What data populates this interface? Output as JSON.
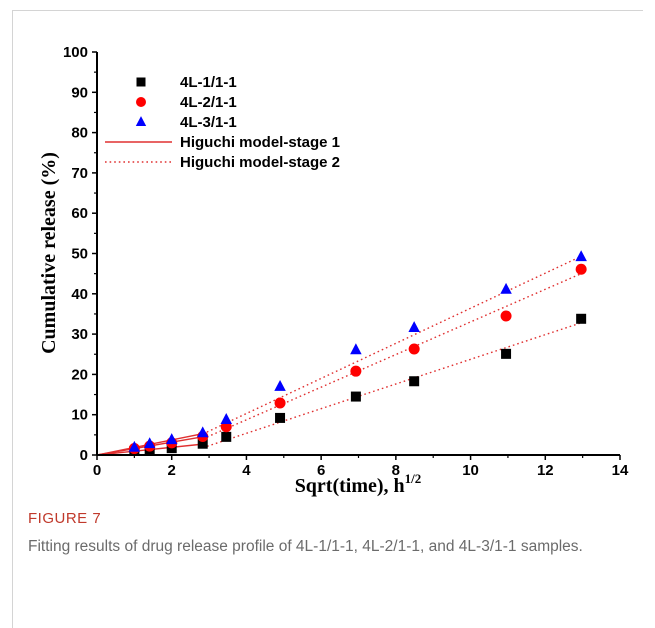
{
  "figure": {
    "label": "FIGURE 7",
    "caption": "Fitting results of drug release profile of 4L-1/1-1, 4L-2/1-1, and 4L-3/1-1 samples."
  },
  "chart_data": {
    "type": "scatter",
    "xlabel": "Sqrt(time), h",
    "xlabel_sup": "1/2",
    "ylabel": "Cumulative release (%)",
    "xlim": [
      0,
      14
    ],
    "ylim": [
      0,
      100
    ],
    "x_ticks": [
      "0",
      "2",
      "4",
      "6",
      "8",
      "10",
      "12",
      "14"
    ],
    "y_ticks": [
      "0",
      "10",
      "20",
      "30",
      "40",
      "50",
      "60",
      "70",
      "80",
      "90",
      "100"
    ],
    "legend_position": "top-left",
    "grid": false,
    "series": [
      {
        "name": "4L-1/1-1",
        "marker": "square",
        "color": "#000000",
        "x": [
          1.0,
          1.41,
          2.0,
          2.83,
          3.46,
          4.9,
          6.93,
          8.49,
          10.95,
          12.96
        ],
        "y": [
          1.0,
          1.2,
          1.7,
          2.8,
          4.5,
          9.2,
          14.5,
          18.3,
          25.1,
          33.8
        ]
      },
      {
        "name": "4L-2/1-1",
        "marker": "circle",
        "color": "#ff0000",
        "x": [
          1.0,
          1.41,
          2.0,
          2.83,
          3.46,
          4.9,
          6.93,
          8.49,
          10.95,
          12.96
        ],
        "y": [
          1.6,
          2.2,
          3.0,
          4.6,
          7.0,
          12.9,
          20.8,
          26.3,
          34.5,
          46.1
        ]
      },
      {
        "name": "4L-3/1-1",
        "marker": "triangle",
        "color": "#0000ff",
        "x": [
          1.0,
          1.41,
          2.0,
          2.83,
          3.46,
          4.9,
          6.93,
          8.49,
          10.95,
          12.96
        ],
        "y": [
          1.9,
          2.8,
          3.8,
          5.5,
          8.8,
          17.0,
          26.1,
          31.6,
          41.1,
          49.2
        ]
      }
    ],
    "fits": [
      {
        "name": "Higuchi model-stage 1",
        "style": "solid",
        "color": "#e03030",
        "lines": [
          {
            "x": [
              0,
              2.83
            ],
            "y": [
              0,
              2.7
            ]
          },
          {
            "x": [
              0,
              2.83
            ],
            "y": [
              0,
              4.5
            ]
          },
          {
            "x": [
              0,
              2.83
            ],
            "y": [
              0,
              5.3
            ]
          }
        ]
      },
      {
        "name": "Higuchi model-stage 2",
        "style": "dotted",
        "color": "#e03030",
        "lines": [
          {
            "x": [
              2.83,
              12.96
            ],
            "y": [
              1.8,
              32.8
            ]
          },
          {
            "x": [
              2.83,
              12.96
            ],
            "y": [
              4.0,
              45.0
            ]
          },
          {
            "x": [
              2.83,
              12.96
            ],
            "y": [
              5.2,
              49.3
            ]
          }
        ]
      }
    ]
  }
}
